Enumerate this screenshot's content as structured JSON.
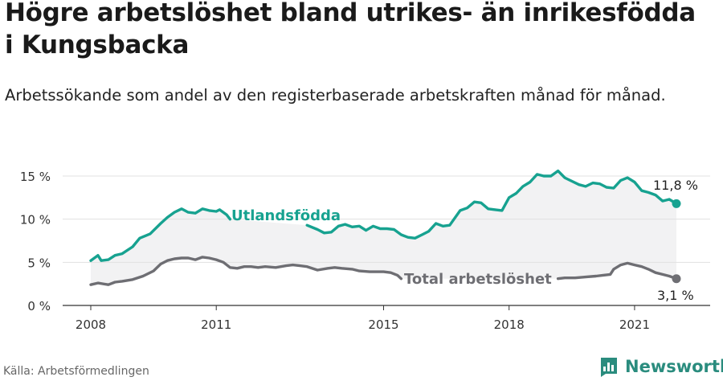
{
  "title": "Högre arbetslöshet bland utrikes- än inrikesfödda i Kungsbacka",
  "subtitle": "Arbetssökande som andel av den registerbaserade arbetskraften månad för månad.",
  "source": "Källa: Arbetsförmedlingen",
  "brand": {
    "name": "Newsworthy",
    "icon": "newsworthy-logo-icon"
  },
  "colors": {
    "foreign": "#17a290",
    "total": "#6e6e73",
    "band": "#f2f2f3",
    "grid": "#e1e1e1",
    "axis": "#333333"
  },
  "chart_data": {
    "type": "line",
    "xlim": [
      2008,
      2022.3
    ],
    "ylim": [
      0,
      15
    ],
    "yticks": [
      0,
      5,
      10,
      15
    ],
    "ytick_labels": [
      "0 %",
      "5 %",
      "10 %",
      "15 %"
    ],
    "xticks": [
      2008,
      2011,
      2015,
      2018,
      2021
    ],
    "xtick_labels": [
      "2008",
      "2011",
      "2015",
      "2018",
      "2021"
    ],
    "grid": true,
    "shaded_between_series": true,
    "series": [
      {
        "name": "Utlandsfödda",
        "color": "#17a290",
        "end_label": "11,8 %",
        "points": [
          [
            2008.0,
            5.2
          ],
          [
            2008.17,
            5.8
          ],
          [
            2008.25,
            5.2
          ],
          [
            2008.42,
            5.3
          ],
          [
            2008.58,
            5.8
          ],
          [
            2008.75,
            6.0
          ],
          [
            2009.0,
            6.8
          ],
          [
            2009.17,
            7.8
          ],
          [
            2009.42,
            8.3
          ],
          [
            2009.67,
            9.5
          ],
          [
            2009.83,
            10.2
          ],
          [
            2010.0,
            10.8
          ],
          [
            2010.17,
            11.2
          ],
          [
            2010.33,
            10.8
          ],
          [
            2010.5,
            10.7
          ],
          [
            2010.67,
            11.2
          ],
          [
            2010.83,
            11.0
          ],
          [
            2011.0,
            10.9
          ],
          [
            2011.08,
            11.1
          ],
          [
            2011.25,
            10.5
          ],
          [
            2011.33,
            10.0
          ],
          null,
          [
            2013.17,
            9.3
          ],
          [
            2013.42,
            8.8
          ],
          [
            2013.58,
            8.4
          ],
          [
            2013.75,
            8.5
          ],
          [
            2013.92,
            9.2
          ],
          [
            2014.08,
            9.4
          ],
          [
            2014.25,
            9.1
          ],
          [
            2014.42,
            9.2
          ],
          [
            2014.58,
            8.7
          ],
          [
            2014.75,
            9.2
          ],
          [
            2014.92,
            8.9
          ],
          [
            2015.08,
            8.9
          ],
          [
            2015.25,
            8.8
          ],
          [
            2015.42,
            8.2
          ],
          [
            2015.58,
            7.9
          ],
          [
            2015.75,
            7.8
          ],
          [
            2015.92,
            8.2
          ],
          [
            2016.08,
            8.6
          ],
          [
            2016.25,
            9.5
          ],
          [
            2016.42,
            9.2
          ],
          [
            2016.58,
            9.3
          ],
          [
            2016.83,
            11.0
          ],
          [
            2017.0,
            11.3
          ],
          [
            2017.17,
            12.0
          ],
          [
            2017.33,
            11.9
          ],
          [
            2017.5,
            11.2
          ],
          [
            2017.67,
            11.1
          ],
          [
            2017.83,
            11.0
          ],
          [
            2018.0,
            12.5
          ],
          [
            2018.17,
            13.0
          ],
          [
            2018.33,
            13.8
          ],
          [
            2018.5,
            14.3
          ],
          [
            2018.67,
            15.2
          ],
          [
            2018.83,
            15.0
          ],
          [
            2019.0,
            15.0
          ],
          [
            2019.17,
            15.6
          ],
          [
            2019.33,
            14.8
          ],
          [
            2019.5,
            14.4
          ],
          [
            2019.67,
            14.0
          ],
          [
            2019.83,
            13.8
          ],
          [
            2020.0,
            14.2
          ],
          [
            2020.17,
            14.1
          ],
          [
            2020.33,
            13.7
          ],
          [
            2020.5,
            13.6
          ],
          [
            2020.67,
            14.5
          ],
          [
            2020.83,
            14.8
          ],
          [
            2021.0,
            14.3
          ],
          [
            2021.17,
            13.3
          ],
          [
            2021.33,
            13.1
          ],
          [
            2021.5,
            12.8
          ],
          [
            2021.67,
            12.1
          ],
          [
            2021.83,
            12.3
          ],
          [
            2022.0,
            11.8
          ]
        ]
      },
      {
        "name": "Total arbetslöshet",
        "color": "#6e6e73",
        "end_label": "3,1 %",
        "points": [
          [
            2008.0,
            2.4
          ],
          [
            2008.17,
            2.6
          ],
          [
            2008.42,
            2.4
          ],
          [
            2008.58,
            2.7
          ],
          [
            2008.75,
            2.8
          ],
          [
            2009.0,
            3.0
          ],
          [
            2009.25,
            3.4
          ],
          [
            2009.5,
            4.0
          ],
          [
            2009.67,
            4.8
          ],
          [
            2009.83,
            5.2
          ],
          [
            2010.0,
            5.4
          ],
          [
            2010.17,
            5.5
          ],
          [
            2010.33,
            5.5
          ],
          [
            2010.5,
            5.3
          ],
          [
            2010.67,
            5.6
          ],
          [
            2010.83,
            5.5
          ],
          [
            2011.0,
            5.3
          ],
          [
            2011.17,
            5.0
          ],
          [
            2011.33,
            4.4
          ],
          [
            2011.5,
            4.3
          ],
          [
            2011.67,
            4.5
          ],
          [
            2011.83,
            4.5
          ],
          [
            2012.0,
            4.4
          ],
          [
            2012.17,
            4.5
          ],
          [
            2012.42,
            4.4
          ],
          [
            2012.67,
            4.6
          ],
          [
            2012.83,
            4.7
          ],
          [
            2013.0,
            4.6
          ],
          [
            2013.17,
            4.5
          ],
          [
            2013.42,
            4.1
          ],
          [
            2013.67,
            4.3
          ],
          [
            2013.83,
            4.4
          ],
          [
            2014.0,
            4.3
          ],
          [
            2014.25,
            4.2
          ],
          [
            2014.42,
            4.0
          ],
          [
            2014.67,
            3.9
          ],
          [
            2014.83,
            3.9
          ],
          [
            2015.0,
            3.9
          ],
          [
            2015.17,
            3.8
          ],
          [
            2015.33,
            3.5
          ],
          [
            2015.42,
            3.1
          ],
          null,
          [
            2019.17,
            3.1
          ],
          [
            2019.33,
            3.2
          ],
          [
            2019.58,
            3.2
          ],
          [
            2019.83,
            3.3
          ],
          [
            2020.08,
            3.4
          ],
          [
            2020.25,
            3.5
          ],
          [
            2020.42,
            3.6
          ],
          [
            2020.5,
            4.2
          ],
          [
            2020.67,
            4.7
          ],
          [
            2020.83,
            4.9
          ],
          [
            2021.0,
            4.7
          ],
          [
            2021.17,
            4.5
          ],
          [
            2021.33,
            4.2
          ],
          [
            2021.5,
            3.8
          ],
          [
            2021.67,
            3.6
          ],
          [
            2021.83,
            3.4
          ],
          [
            2022.0,
            3.1
          ]
        ]
      }
    ]
  }
}
